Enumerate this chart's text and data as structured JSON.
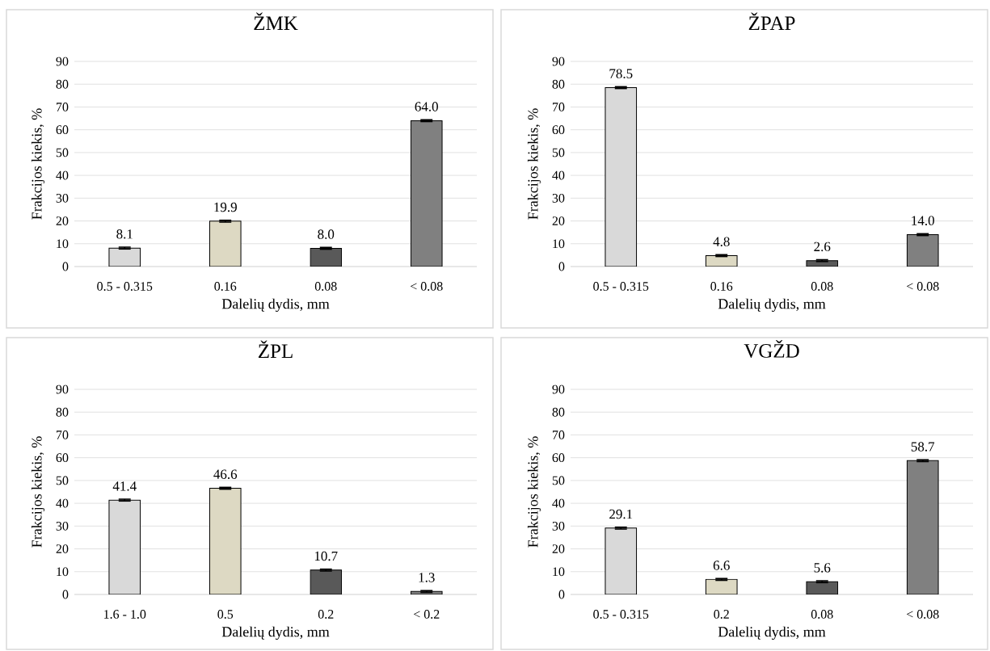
{
  "chart_data": [
    {
      "type": "bar",
      "title": "ŽMK",
      "xlabel": "Dalelių dydis, mm",
      "ylabel": "Frakcijos kiekis, %",
      "categories": [
        "0.5 - 0.315",
        "0.16",
        "0.08",
        "< 0.08"
      ],
      "values": [
        8.1,
        19.9,
        8.0,
        64.0
      ],
      "value_labels": [
        "8.1",
        "19.9",
        "8.0",
        "64.0"
      ],
      "errors": [
        0.4,
        0.4,
        0.4,
        0.4
      ],
      "colors": [
        "#d9d9d9",
        "#ddd9c3",
        "#595959",
        "#808080"
      ],
      "ylim": [
        0,
        90
      ],
      "yticks": [
        0,
        10,
        20,
        30,
        40,
        50,
        60,
        70,
        80,
        90
      ],
      "grid": "y"
    },
    {
      "type": "bar",
      "title": "ŽPAP",
      "xlabel": "Dalelių dydis, mm",
      "ylabel": "Frakcijos kiekis, %",
      "categories": [
        "0.5 - 0.315",
        "0.16",
        "0.08",
        "< 0.08"
      ],
      "values": [
        78.5,
        4.8,
        2.6,
        14.0
      ],
      "value_labels": [
        "78.5",
        "4.8",
        "2.6",
        "14.0"
      ],
      "errors": [
        0.4,
        0.4,
        0.4,
        0.4
      ],
      "colors": [
        "#d9d9d9",
        "#ddd9c3",
        "#595959",
        "#808080"
      ],
      "ylim": [
        0,
        90
      ],
      "yticks": [
        0,
        10,
        20,
        30,
        40,
        50,
        60,
        70,
        80,
        90
      ],
      "grid": "y"
    },
    {
      "type": "bar",
      "title": "ŽPL",
      "xlabel": "Dalelių dydis, mm",
      "ylabel": "Frakcijos kiekis, %",
      "categories": [
        "1.6 - 1.0",
        "0.5",
        "0.2",
        "< 0.2"
      ],
      "values": [
        41.4,
        46.6,
        10.7,
        1.3
      ],
      "value_labels": [
        "41.4",
        "46.6",
        "10.7",
        "1.3"
      ],
      "errors": [
        0.4,
        0.4,
        0.4,
        0.4
      ],
      "colors": [
        "#d9d9d9",
        "#ddd9c3",
        "#595959",
        "#808080"
      ],
      "ylim": [
        0,
        90
      ],
      "yticks": [
        0,
        10,
        20,
        30,
        40,
        50,
        60,
        70,
        80,
        90
      ],
      "grid": "y"
    },
    {
      "type": "bar",
      "title": "VGŽD",
      "xlabel": "Dalelių dydis, mm",
      "ylabel": "Frakcijos kiekis, %",
      "categories": [
        "0.5 - 0.315",
        "0.2",
        "0.08",
        "< 0.08"
      ],
      "values": [
        29.1,
        6.6,
        5.6,
        58.7
      ],
      "value_labels": [
        "29.1",
        "6.6",
        "5.6",
        "58.7"
      ],
      "errors": [
        0.4,
        0.4,
        0.4,
        0.4
      ],
      "colors": [
        "#d9d9d9",
        "#ddd9c3",
        "#595959",
        "#808080"
      ],
      "ylim": [
        0,
        90
      ],
      "yticks": [
        0,
        10,
        20,
        30,
        40,
        50,
        60,
        70,
        80,
        90
      ],
      "grid": "y"
    }
  ]
}
